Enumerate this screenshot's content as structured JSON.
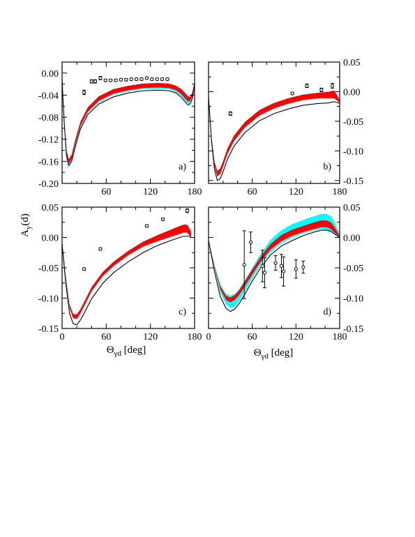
{
  "figure": {
    "ylabel_main": "A",
    "ylabel_sub": "y",
    "ylabel_tail": "(d)",
    "xlabel_main": "Θ",
    "xlabel_sub": "γd",
    "xlabel_tail": " [deg]"
  },
  "colors": {
    "band_outer": "#00ffff",
    "band_inner": "#ff0000",
    "curve": "#000000",
    "frame": "#000000"
  },
  "chart_data": [
    {
      "type": "line",
      "panel_label": "a)",
      "xlim": [
        0,
        180
      ],
      "ylim": [
        -0.2,
        0.02
      ],
      "x_ticks": [
        0,
        60,
        120,
        180
      ],
      "x_tick_labels": [
        "",
        "60",
        "120",
        "180"
      ],
      "y_ticks": [
        0.0,
        -0.04,
        -0.08,
        -0.12,
        -0.16,
        -0.2
      ],
      "y_tick_labels": [
        "0.00",
        "-0.04",
        "-0.08",
        "-0.12",
        "-0.16",
        "-0.20"
      ],
      "y_axis_side": "left",
      "cyan_band": {
        "x": [
          0,
          3,
          6,
          9,
          13,
          18,
          25,
          35,
          50,
          70,
          90,
          110,
          130,
          145,
          155,
          162,
          167,
          171,
          174,
          177,
          180
        ],
        "upper": [
          -0.01,
          -0.085,
          -0.14,
          -0.156,
          -0.148,
          -0.12,
          -0.088,
          -0.062,
          -0.042,
          -0.029,
          -0.023,
          -0.019,
          -0.018,
          -0.019,
          -0.023,
          -0.029,
          -0.036,
          -0.042,
          -0.043,
          -0.035,
          -0.015
        ],
        "lower": [
          -0.012,
          -0.09,
          -0.148,
          -0.166,
          -0.158,
          -0.13,
          -0.098,
          -0.072,
          -0.052,
          -0.039,
          -0.033,
          -0.029,
          -0.028,
          -0.029,
          -0.034,
          -0.042,
          -0.05,
          -0.056,
          -0.055,
          -0.045,
          -0.02
        ]
      },
      "red_band": {
        "x": [
          0,
          3,
          6,
          9,
          13,
          18,
          25,
          35,
          50,
          70,
          90,
          110,
          130,
          145,
          155,
          162,
          167,
          171,
          174,
          177,
          180
        ],
        "upper": [
          -0.01,
          -0.085,
          -0.14,
          -0.156,
          -0.148,
          -0.12,
          -0.088,
          -0.062,
          -0.042,
          -0.029,
          -0.023,
          -0.019,
          -0.018,
          -0.019,
          -0.023,
          -0.029,
          -0.036,
          -0.042,
          -0.043,
          -0.035,
          -0.015
        ],
        "lower": [
          -0.012,
          -0.09,
          -0.147,
          -0.164,
          -0.156,
          -0.128,
          -0.096,
          -0.07,
          -0.05,
          -0.037,
          -0.031,
          -0.027,
          -0.026,
          -0.027,
          -0.031,
          -0.038,
          -0.046,
          -0.051,
          -0.05,
          -0.042,
          -0.018
        ]
      },
      "curve": {
        "x": [
          0,
          3,
          6,
          9,
          13,
          18,
          25,
          35,
          50,
          70,
          90,
          110,
          130,
          145,
          155,
          162,
          167,
          171,
          174,
          177,
          180
        ],
        "y": [
          -0.012,
          -0.092,
          -0.15,
          -0.168,
          -0.16,
          -0.133,
          -0.101,
          -0.075,
          -0.056,
          -0.043,
          -0.036,
          -0.032,
          -0.031,
          -0.032,
          -0.036,
          -0.044,
          -0.052,
          -0.058,
          -0.056,
          -0.046,
          -0.02
        ]
      },
      "points": {
        "x": [
          30,
          40,
          45,
          52,
          59,
          66,
          73,
          80,
          87,
          94,
          101,
          108,
          115,
          122,
          129,
          136,
          143
        ],
        "y": [
          -0.035,
          -0.015,
          -0.015,
          -0.009,
          -0.013,
          -0.013,
          -0.013,
          -0.012,
          -0.012,
          -0.011,
          -0.011,
          -0.011,
          -0.009,
          -0.011,
          -0.011,
          -0.011,
          -0.011
        ],
        "err": [
          0.004,
          0.003,
          0.003,
          0.003,
          0.002,
          0.002,
          0.002,
          0.002,
          0.002,
          0.002,
          0.002,
          0.002,
          0.002,
          0.002,
          0.002,
          0.002,
          0.002
        ]
      }
    },
    {
      "type": "line",
      "panel_label": "b)",
      "xlim": [
        0,
        180
      ],
      "ylim": [
        -0.155,
        0.05
      ],
      "x_ticks": [
        0,
        60,
        120,
        180
      ],
      "x_tick_labels": [
        "",
        "60",
        "120",
        "180"
      ],
      "y_ticks": [
        0.05,
        0.0,
        -0.05,
        -0.1,
        -0.15
      ],
      "y_tick_labels": [
        "0.05",
        "0.00",
        "-0.05",
        "-0.10",
        "-0.15"
      ],
      "y_axis_side": "right",
      "cyan_band": {
        "x": [
          0,
          4,
          8,
          12,
          16,
          20,
          26,
          35,
          50,
          70,
          90,
          110,
          130,
          150,
          165,
          172,
          176,
          180
        ],
        "upper": [
          -0.005,
          -0.075,
          -0.118,
          -0.134,
          -0.13,
          -0.117,
          -0.096,
          -0.074,
          -0.051,
          -0.031,
          -0.019,
          -0.011,
          -0.005,
          -0.002,
          0.0,
          0.002,
          -0.005,
          -0.015
        ],
        "lower": [
          -0.008,
          -0.08,
          -0.126,
          -0.144,
          -0.14,
          -0.127,
          -0.106,
          -0.084,
          -0.061,
          -0.041,
          -0.029,
          -0.021,
          -0.015,
          -0.012,
          -0.012,
          -0.012,
          -0.015,
          -0.02
        ]
      },
      "red_band": {
        "x": [
          0,
          4,
          8,
          12,
          16,
          20,
          26,
          35,
          50,
          70,
          90,
          110,
          130,
          150,
          165,
          172,
          176,
          180
        ],
        "upper": [
          -0.005,
          -0.075,
          -0.118,
          -0.134,
          -0.13,
          -0.117,
          -0.096,
          -0.074,
          -0.051,
          -0.031,
          -0.019,
          -0.011,
          -0.005,
          -0.002,
          0.0,
          0.002,
          -0.005,
          -0.015
        ],
        "lower": [
          -0.008,
          -0.08,
          -0.125,
          -0.143,
          -0.139,
          -0.126,
          -0.105,
          -0.083,
          -0.06,
          -0.04,
          -0.028,
          -0.02,
          -0.014,
          -0.011,
          -0.011,
          -0.011,
          -0.014,
          -0.019
        ]
      },
      "curve": {
        "x": [
          0,
          4,
          8,
          12,
          16,
          20,
          26,
          35,
          50,
          70,
          90,
          110,
          130,
          150,
          165,
          172,
          176,
          180
        ],
        "y": [
          -0.008,
          -0.082,
          -0.13,
          -0.15,
          -0.147,
          -0.135,
          -0.114,
          -0.092,
          -0.069,
          -0.049,
          -0.037,
          -0.029,
          -0.023,
          -0.02,
          -0.019,
          -0.017,
          -0.018,
          -0.02
        ]
      },
      "points": {
        "x": [
          30,
          115,
          135,
          155,
          170
        ],
        "y": [
          -0.037,
          -0.003,
          0.01,
          0.003,
          0.01
        ],
        "err": [
          0.003,
          0.002,
          0.003,
          0.003,
          0.004
        ]
      }
    },
    {
      "type": "line",
      "panel_label": "c)",
      "xlim": [
        0,
        180
      ],
      "ylim": [
        -0.15,
        0.05
      ],
      "x_ticks": [
        0,
        60,
        120,
        180
      ],
      "x_tick_labels": [
        "0",
        "60",
        "120",
        "180"
      ],
      "y_ticks": [
        0.05,
        0.0,
        -0.05,
        -0.1,
        -0.15
      ],
      "y_tick_labels": [
        "0.05",
        "0.00",
        "-0.05",
        "-0.10",
        "-0.15"
      ],
      "y_axis_side": "left",
      "cyan_band": {
        "x": [
          0,
          5,
          10,
          15,
          20,
          25,
          30,
          40,
          55,
          70,
          90,
          110,
          130,
          150,
          160,
          165,
          170,
          175
        ],
        "upper": [
          -0.005,
          -0.065,
          -0.11,
          -0.126,
          -0.127,
          -0.118,
          -0.106,
          -0.082,
          -0.057,
          -0.04,
          -0.022,
          -0.007,
          0.004,
          0.014,
          0.019,
          0.021,
          0.021,
          0.01
        ],
        "lower": [
          -0.008,
          -0.07,
          -0.116,
          -0.133,
          -0.134,
          -0.125,
          -0.113,
          -0.089,
          -0.064,
          -0.047,
          -0.029,
          -0.015,
          -0.006,
          0.002,
          0.006,
          0.008,
          0.008,
          0.0
        ]
      },
      "red_band": {
        "x": [
          0,
          5,
          10,
          15,
          20,
          25,
          30,
          40,
          55,
          70,
          90,
          110,
          130,
          150,
          160,
          165,
          170,
          175
        ],
        "upper": [
          -0.005,
          -0.065,
          -0.11,
          -0.126,
          -0.127,
          -0.118,
          -0.106,
          -0.082,
          -0.057,
          -0.04,
          -0.022,
          -0.007,
          0.004,
          0.014,
          0.019,
          0.021,
          0.021,
          0.01
        ],
        "lower": [
          -0.008,
          -0.07,
          -0.116,
          -0.133,
          -0.134,
          -0.125,
          -0.113,
          -0.089,
          -0.064,
          -0.047,
          -0.029,
          -0.015,
          -0.006,
          0.002,
          0.006,
          0.008,
          0.008,
          0.0
        ]
      },
      "curve": {
        "x": [
          0,
          5,
          10,
          15,
          20,
          25,
          30,
          40,
          55,
          70,
          90,
          110,
          130,
          150,
          165,
          175
        ],
        "y": [
          -0.01,
          -0.075,
          -0.124,
          -0.142,
          -0.144,
          -0.136,
          -0.125,
          -0.101,
          -0.076,
          -0.058,
          -0.04,
          -0.025,
          -0.013,
          -0.004,
          0.002,
          0.002
        ]
      },
      "points": {
        "x": [
          30,
          52,
          115,
          137,
          170
        ],
        "y": [
          -0.052,
          -0.019,
          0.019,
          0.03,
          0.044
        ],
        "err": [
          0.002,
          0.002,
          0.002,
          0.002,
          0.003
        ]
      }
    },
    {
      "type": "line",
      "panel_label": "d)",
      "xlim": [
        0,
        180
      ],
      "ylim": [
        -0.15,
        0.05
      ],
      "x_ticks": [
        0,
        60,
        120,
        180
      ],
      "x_tick_labels": [
        "0",
        "60",
        "120",
        "180"
      ],
      "y_ticks": [
        0.05,
        0.0,
        -0.05,
        -0.1,
        -0.15
      ],
      "y_tick_labels": [
        "0.05",
        "0.00",
        "-0.05",
        "-0.10",
        "-0.15"
      ],
      "y_axis_side": "right",
      "cyan_band": {
        "x": [
          0,
          8,
          16,
          24,
          30,
          36,
          42,
          50,
          60,
          72,
          85,
          100,
          115,
          130,
          145,
          155,
          162,
          168,
          174,
          180
        ],
        "upper": [
          -0.005,
          -0.045,
          -0.077,
          -0.093,
          -0.096,
          -0.093,
          -0.085,
          -0.07,
          -0.05,
          -0.026,
          -0.004,
          0.012,
          0.022,
          0.029,
          0.035,
          0.039,
          0.039,
          0.035,
          0.022,
          0.005
        ],
        "lower": [
          -0.005,
          -0.05,
          -0.09,
          -0.11,
          -0.116,
          -0.113,
          -0.104,
          -0.088,
          -0.067,
          -0.044,
          -0.024,
          -0.009,
          0.0,
          0.007,
          0.012,
          0.014,
          0.013,
          0.01,
          0.004,
          0.0
        ]
      },
      "red_band": {
        "x": [
          0,
          8,
          16,
          24,
          30,
          36,
          42,
          50,
          60,
          72,
          85,
          100,
          115,
          130,
          145,
          155,
          162,
          168,
          174,
          180
        ],
        "upper": [
          -0.005,
          -0.046,
          -0.08,
          -0.096,
          -0.099,
          -0.095,
          -0.087,
          -0.072,
          -0.053,
          -0.031,
          -0.011,
          0.004,
          0.013,
          0.019,
          0.025,
          0.028,
          0.028,
          0.025,
          0.015,
          0.003
        ],
        "lower": [
          -0.005,
          -0.049,
          -0.085,
          -0.103,
          -0.107,
          -0.103,
          -0.095,
          -0.08,
          -0.061,
          -0.039,
          -0.02,
          -0.006,
          0.003,
          0.009,
          0.014,
          0.017,
          0.017,
          0.014,
          0.007,
          0.001
        ]
      },
      "curve": {
        "x": [
          0,
          8,
          16,
          24,
          30,
          36,
          42,
          50,
          60,
          72,
          85,
          100,
          115,
          130,
          145,
          155,
          162,
          168,
          174,
          180
        ],
        "y": [
          -0.005,
          -0.055,
          -0.097,
          -0.117,
          -0.122,
          -0.118,
          -0.109,
          -0.093,
          -0.072,
          -0.049,
          -0.029,
          -0.014,
          -0.005,
          0.003,
          0.009,
          0.012,
          0.012,
          0.01,
          0.005,
          0.0
        ]
      },
      "points": {
        "x": [
          49,
          58,
          74,
          77,
          92,
          100,
          103,
          120,
          130
        ],
        "y": [
          -0.045,
          -0.008,
          -0.047,
          -0.058,
          -0.042,
          -0.047,
          -0.056,
          -0.052,
          -0.049
        ],
        "err": [
          0.056,
          0.017,
          0.026,
          0.025,
          0.012,
          0.019,
          0.024,
          0.015,
          0.01
        ]
      }
    }
  ]
}
